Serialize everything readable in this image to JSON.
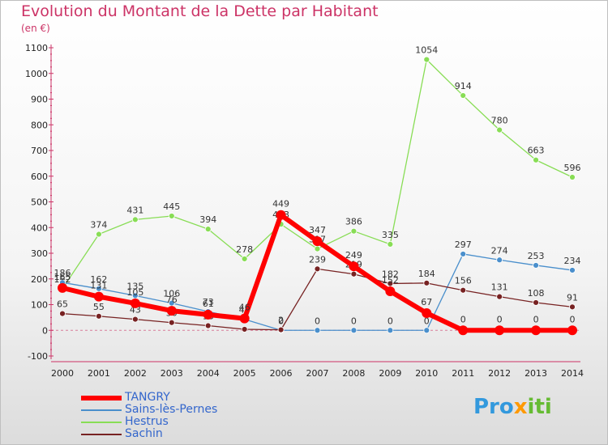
{
  "header": {
    "title": "Evolution du Montant de la Dette par Habitant",
    "unit": "(en €)"
  },
  "logo": {
    "text": "Proxiti"
  },
  "chart_data": {
    "type": "line",
    "title": "Evolution du Montant de la Dette par Habitant",
    "subtitle": "(en €)",
    "xlabel": "",
    "ylabel": "",
    "x": [
      2000,
      2001,
      2002,
      2003,
      2004,
      2005,
      2006,
      2007,
      2008,
      2009,
      2010,
      2011,
      2012,
      2013,
      2014
    ],
    "ylim": [
      -100,
      1100
    ],
    "yticks": [
      -100,
      0,
      100,
      200,
      300,
      400,
      500,
      600,
      700,
      800,
      900,
      1000,
      1100
    ],
    "grid": false,
    "legend_position": "bottom-left",
    "series": [
      {
        "name": "TANGRY",
        "color": "#ff0000",
        "values": [
          165,
          131,
          105,
          76,
          61,
          46,
          449,
          347,
          249,
          152,
          67,
          0,
          0,
          0,
          0
        ]
      },
      {
        "name": "Sains-lès-Pernes",
        "color": "#4a8fcc",
        "values": [
          186,
          162,
          135,
          106,
          73,
          43,
          0,
          0,
          0,
          0,
          0,
          297,
          274,
          253,
          234
        ]
      },
      {
        "name": "Hestrus",
        "color": "#88dd55",
        "values": [
          162,
          374,
          431,
          445,
          394,
          278,
          413,
          317,
          386,
          335,
          1054,
          914,
          780,
          663,
          596
        ]
      },
      {
        "name": "Sachin",
        "color": "#772222",
        "values": [
          65,
          55,
          43,
          30,
          18,
          4,
          2,
          239,
          219,
          182,
          184,
          156,
          131,
          108,
          91
        ]
      }
    ]
  }
}
